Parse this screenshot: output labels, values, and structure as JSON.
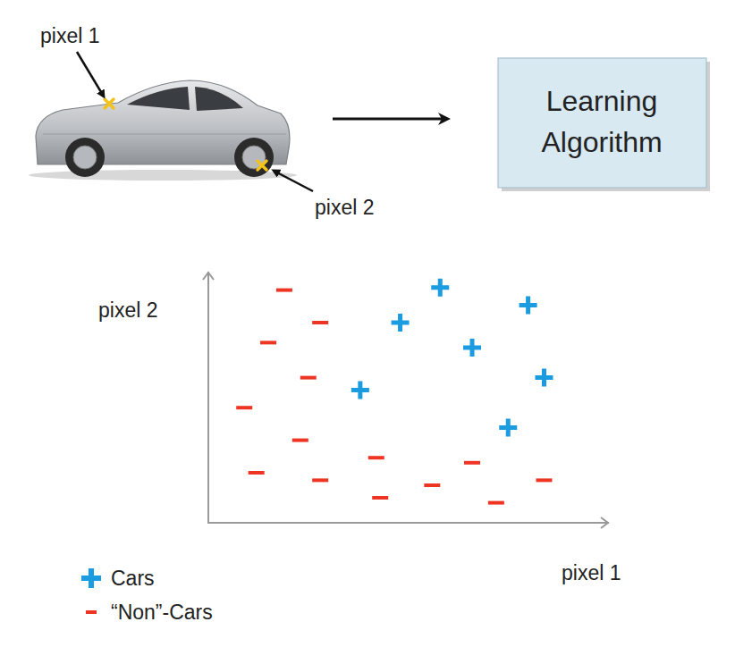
{
  "diagram": {
    "callouts": [
      {
        "label": "pixel 1"
      },
      {
        "label": "pixel 2"
      }
    ],
    "box_lines": [
      "Learning",
      "Algorithm"
    ]
  },
  "chart_data": {
    "type": "scatter",
    "x_label": "pixel 1",
    "y_label": "pixel 2",
    "xlim": [
      0,
      100
    ],
    "ylim": [
      0,
      100
    ],
    "tick_labels": false,
    "grid": false,
    "legend": "lower left",
    "series": [
      {
        "name": "Cars",
        "color": "#1b9be0",
        "marker": "plus",
        "x": [
          58,
          48,
          80,
          66,
          84,
          38,
          75
        ],
        "values": [
          94,
          80,
          87,
          70,
          58,
          53,
          38
        ]
      },
      {
        "name": "“Non”-Cars",
        "color": "#ee3524",
        "marker": "dash",
        "x": [
          19,
          28,
          15,
          25,
          9,
          23,
          12,
          28,
          42,
          43,
          56,
          66,
          72,
          84
        ],
        "values": [
          93,
          80,
          72,
          58,
          46,
          33,
          20,
          17,
          26,
          10,
          15,
          24,
          8,
          17
        ]
      }
    ]
  }
}
